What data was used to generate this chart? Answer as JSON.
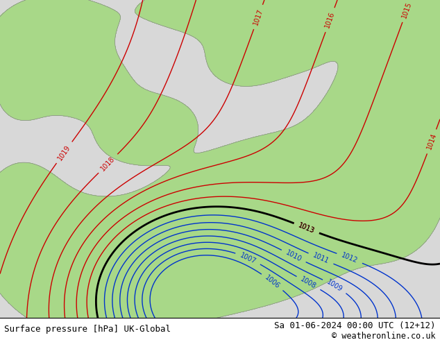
{
  "title_left": "Surface pressure [hPa] UK-Global",
  "title_right": "Sa 01-06-2024 00:00 UTC (12+12)",
  "copyright": "© weatheronline.co.uk",
  "bg_color": "#d8d8d8",
  "land_color_green": "#a8d888",
  "sea_color": "#d0d0d8",
  "land_outline_color": "#888888",
  "red_contour_color": "#cc0000",
  "blue_contour_color": "#0033cc",
  "black_contour_color": "#000000",
  "font_size_bottom": 9,
  "font_size_labels": 7,
  "red_levels": [
    1013,
    1014,
    1015,
    1016,
    1017,
    1018,
    1019
  ],
  "blue_levels": [
    1006,
    1007,
    1008,
    1009,
    1010,
    1011,
    1012
  ],
  "black_levels": [
    1013
  ]
}
